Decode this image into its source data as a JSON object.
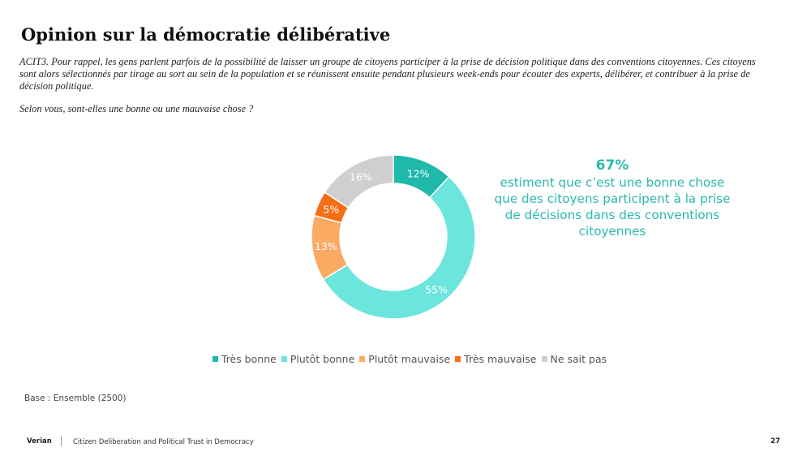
{
  "header": {
    "title": "Opinion sur la démocratie délibérative",
    "question": "ACIT3. Pour rappel, les gens parlent parfois de la possibilité de laisser un groupe de citoyens participer à la prise de décision politique dans des conventions citoyennes. Ces citoyens sont alors sélectionnés par tirage au sort au sein de la population et se réunissent ensuite pendant plusieurs week-ends pour écouter des experts, délibérer, et contribuer à la prise de décision politique.",
    "subquestion": "Selon vous, sont-elles une bonne ou une mauvaise chose ?"
  },
  "chart_data": {
    "type": "pie",
    "variant": "donut",
    "title": "",
    "categories": [
      "Très bonne",
      "Plutôt bonne",
      "Plutôt mauvaise",
      "Très mauvaise",
      "Ne sait pas"
    ],
    "values": [
      12,
      55,
      13,
      5,
      16
    ],
    "data_labels": [
      "12%",
      "55%",
      "13%",
      "5%",
      "16%"
    ],
    "colors": [
      "#1fb8aa",
      "#6ce5dc",
      "#fbaa64",
      "#f46e16",
      "#cfcfcf"
    ],
    "label_colors": [
      "#ffffff",
      "#ffffff",
      "#ffffff",
      "#ffffff",
      "#ffffff"
    ],
    "legend_position": "bottom",
    "unit": "%"
  },
  "callout": {
    "percent": "67%",
    "text": "estiment que c’est une bonne chose que des citoyens participent à la prise de décisions dans des conventions citoyennes",
    "color": "#2bb9ad"
  },
  "base_note": "Base : Ensemble (2500)",
  "footer": {
    "brand": "Verian",
    "text": "Citizen Deliberation and Political Trust in Democracy",
    "page_number": "27"
  }
}
